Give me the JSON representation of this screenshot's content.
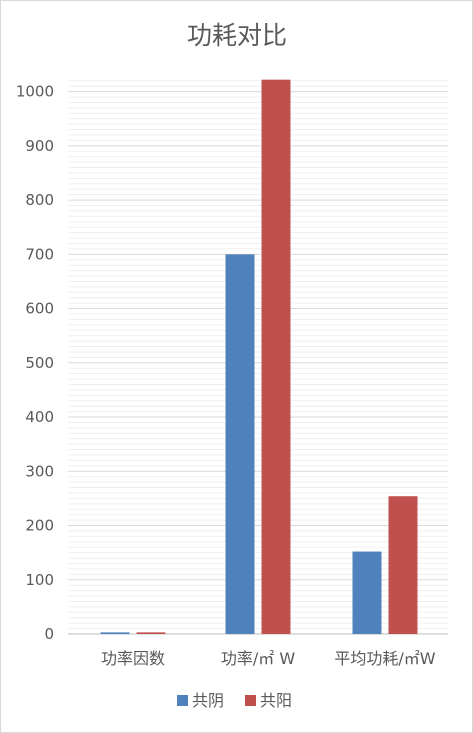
{
  "chart_data": {
    "type": "bar",
    "title": "功耗对比",
    "categories": [
      "功率因数",
      "功率/㎡ W",
      "平均功耗/㎡W"
    ],
    "series": [
      {
        "name": "共阴",
        "values": [
          3,
          700,
          152
        ],
        "color": "#4f81bd"
      },
      {
        "name": "共阳",
        "values": [
          3,
          1022,
          254
        ],
        "color": "#c0504d"
      }
    ],
    "ylim": [
      0,
      1000
    ],
    "yticks": [
      0,
      100,
      200,
      300,
      400,
      500,
      600,
      700,
      800,
      900,
      1000
    ],
    "grid": true,
    "legend": "bottom"
  }
}
